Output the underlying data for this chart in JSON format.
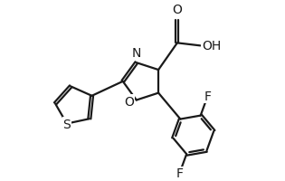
{
  "bg_color": "#ffffff",
  "line_color": "#1a1a1a",
  "line_width": 1.6,
  "font_size": 10.5,
  "figsize": [
    3.15,
    2.01
  ],
  "dpi": 100,
  "xlim": [
    0,
    10
  ],
  "ylim": [
    0,
    6.4
  ]
}
